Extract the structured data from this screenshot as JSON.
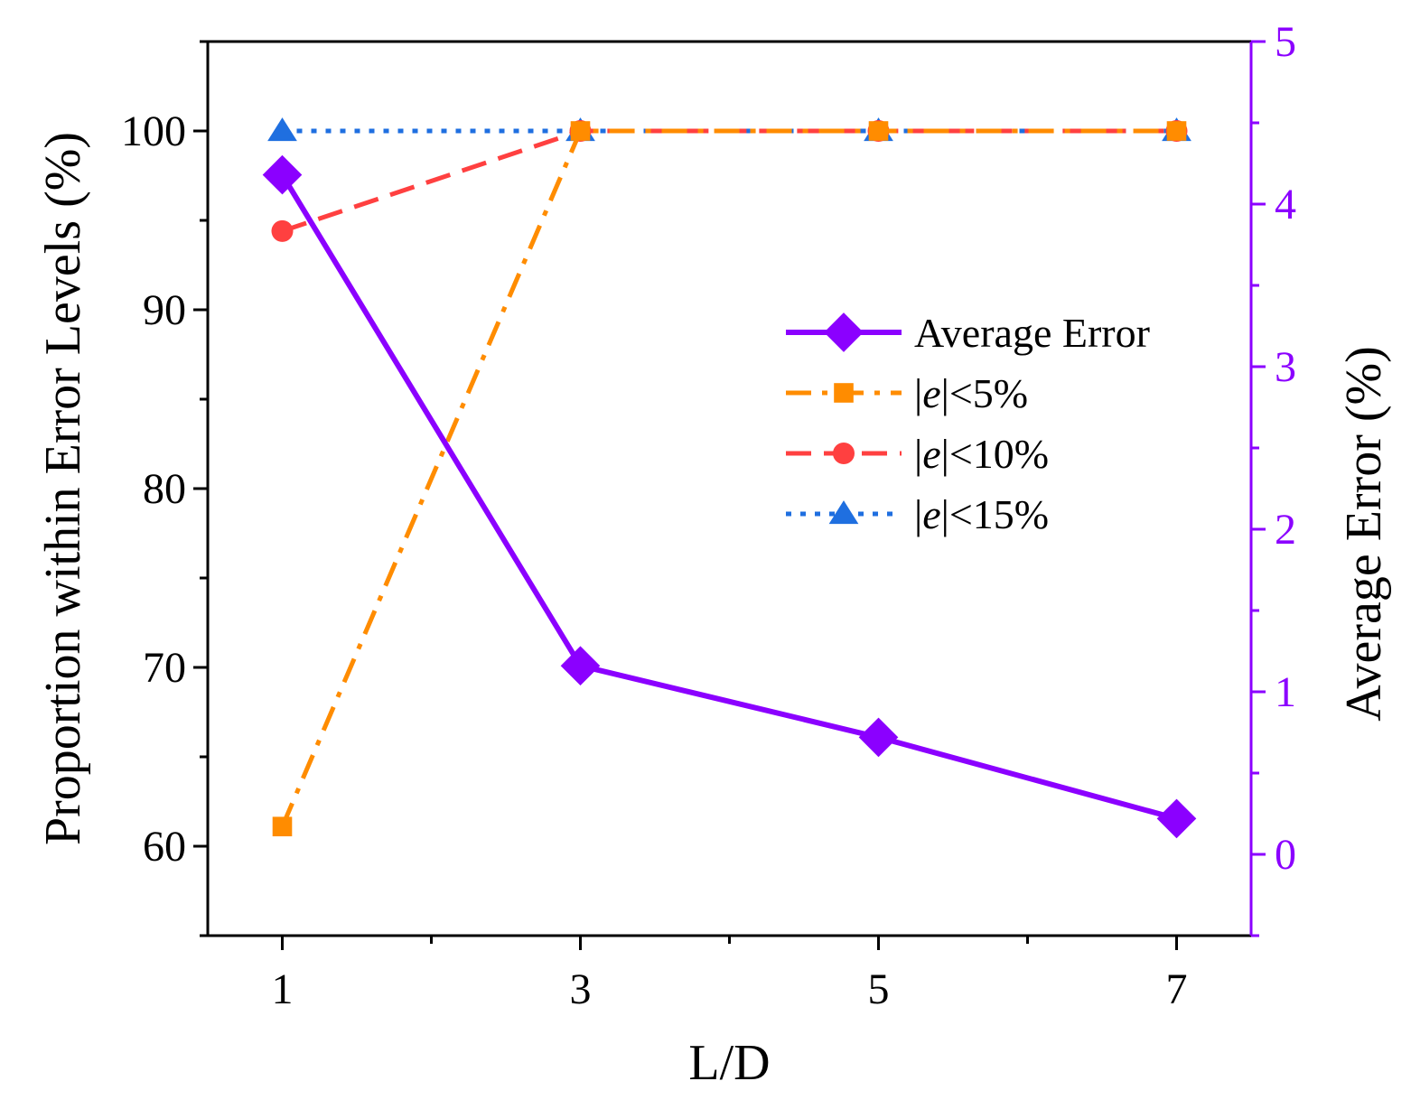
{
  "chart_data": {
    "type": "line",
    "x": [
      1,
      3,
      5,
      7
    ],
    "xlabel": "L/D",
    "xlim": [
      0.5,
      7.5
    ],
    "xticks": [
      "1",
      "3",
      "5",
      "7"
    ],
    "ylabel": "Proportion within Error Levels (%)",
    "ylim": [
      55,
      105
    ],
    "yticks": [
      "60",
      "70",
      "80",
      "90",
      "100"
    ],
    "y2label": "Average Error (%)",
    "y2lim": [
      -0.5,
      5
    ],
    "y2ticks": [
      "0",
      "1",
      "2",
      "3",
      "4",
      "5"
    ],
    "series": [
      {
        "name": "Average Error",
        "axis": "right",
        "marker": "diamond",
        "line": "solid",
        "values": [
          4.18,
          1.16,
          0.72,
          0.22
        ]
      },
      {
        "name": "|e|<5%",
        "axis": "left",
        "marker": "square",
        "line": "dash-dot",
        "values": [
          61.1,
          100,
          100,
          100
        ]
      },
      {
        "name": "|e|<10%",
        "axis": "left",
        "marker": "circle",
        "line": "dash",
        "values": [
          94.4,
          100,
          100,
          100
        ]
      },
      {
        "name": "|e|<15%",
        "axis": "left",
        "marker": "triangle",
        "line": "dot",
        "values": [
          100,
          100,
          100,
          100
        ]
      }
    ],
    "legend": {
      "position": "right-middle",
      "entries": [
        {
          "prefix": "Average Error",
          "ital": "",
          "suffix": ""
        },
        {
          "prefix": "|",
          "ital": "e",
          "suffix": "|<5%"
        },
        {
          "prefix": "|",
          "ital": "e",
          "suffix": "|<10%"
        },
        {
          "prefix": "|",
          "ital": "e",
          "suffix": "|<15%"
        }
      ]
    },
    "colors": {
      "Average Error": "#8B00FF",
      "|e|<5%": "#FF8C00",
      "|e|<10%": "#FF4040",
      "|e|<15%": "#1F6FE0",
      "right_axis": "#8B00FF"
    }
  }
}
